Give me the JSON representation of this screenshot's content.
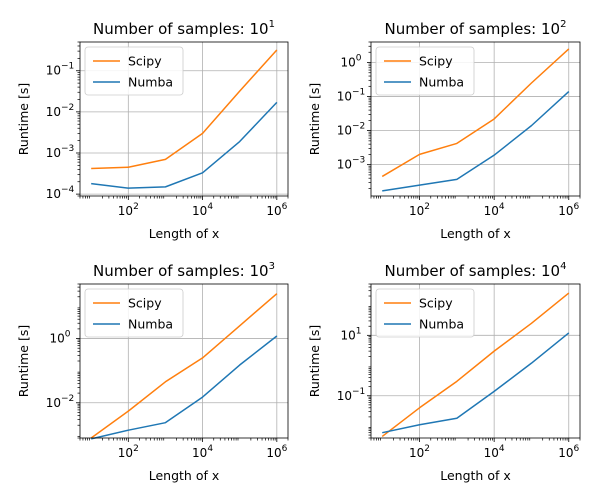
{
  "chart_data": [
    {
      "type": "line",
      "title_base": "Number of samples: 10",
      "title_exp": "1",
      "xlabel": "Length of x",
      "ylabel": "Runtime [s]",
      "xscale": "log",
      "yscale": "log",
      "xlim": [
        5,
        2000000
      ],
      "ylim": [
        9e-05,
        0.5
      ],
      "xticks": [
        100,
        10000,
        1000000
      ],
      "yticks": [
        0.0001,
        0.001,
        0.01,
        0.1
      ],
      "grid": true,
      "legend": "top-left",
      "x": [
        10,
        100,
        1000,
        10000,
        100000,
        1000000
      ],
      "series": [
        {
          "name": "Scipy",
          "color": "#ff7f0e",
          "values": [
            0.00042,
            0.00045,
            0.0007,
            0.003,
            0.032,
            0.32
          ]
        },
        {
          "name": "Numba",
          "color": "#1f77b4",
          "values": [
            0.00018,
            0.00014,
            0.00015,
            0.00033,
            0.0019,
            0.017
          ]
        }
      ]
    },
    {
      "type": "line",
      "title_base": "Number of samples: 10",
      "title_exp": "2",
      "xlabel": "Length of x",
      "ylabel": "Runtime [s]",
      "xscale": "log",
      "yscale": "log",
      "xlim": [
        5,
        2000000
      ],
      "ylim": [
        0.00012,
        4
      ],
      "xticks": [
        100,
        10000,
        1000000
      ],
      "yticks": [
        0.001,
        0.01,
        0.1,
        1
      ],
      "grid": true,
      "legend": "top-left",
      "x": [
        10,
        100,
        1000,
        10000,
        100000,
        1000000
      ],
      "series": [
        {
          "name": "Scipy",
          "color": "#ff7f0e",
          "values": [
            0.00045,
            0.002,
            0.0042,
            0.022,
            0.25,
            2.5
          ]
        },
        {
          "name": "Numba",
          "color": "#1f77b4",
          "values": [
            0.00017,
            0.00025,
            0.00037,
            0.0019,
            0.014,
            0.14
          ]
        }
      ]
    },
    {
      "type": "line",
      "title_base": "Number of samples: 10",
      "title_exp": "3",
      "xlabel": "Length of x",
      "ylabel": "Runtime [s]",
      "xscale": "log",
      "yscale": "log",
      "xlim": [
        5,
        2000000
      ],
      "ylim": [
        0.0008,
        50
      ],
      "xticks": [
        100,
        10000,
        1000000
      ],
      "yticks": [
        0.01,
        1
      ],
      "grid": true,
      "legend": "top-left",
      "x": [
        10,
        100,
        1000,
        10000,
        100000,
        1000000
      ],
      "series": [
        {
          "name": "Scipy",
          "color": "#ff7f0e",
          "values": [
            0.0008,
            0.0055,
            0.045,
            0.25,
            2.5,
            25
          ]
        },
        {
          "name": "Numba",
          "color": "#1f77b4",
          "values": [
            0.00075,
            0.0014,
            0.0024,
            0.015,
            0.15,
            1.2
          ]
        }
      ]
    },
    {
      "type": "line",
      "title_base": "Number of samples: 10",
      "title_exp": "4",
      "xlabel": "Length of x",
      "ylabel": "Runtime [s]",
      "xscale": "log",
      "yscale": "log",
      "xlim": [
        5,
        2000000
      ],
      "ylim": [
        0.004,
        500
      ],
      "xticks": [
        100,
        10000,
        1000000
      ],
      "yticks": [
        0.1,
        10
      ],
      "grid": true,
      "legend": "top-left",
      "x": [
        10,
        100,
        1000,
        10000,
        100000,
        1000000
      ],
      "series": [
        {
          "name": "Scipy",
          "color": "#ff7f0e",
          "values": [
            0.0045,
            0.04,
            0.3,
            3,
            25,
            250
          ]
        },
        {
          "name": "Numba",
          "color": "#1f77b4",
          "values": [
            0.006,
            0.011,
            0.018,
            0.14,
            1.2,
            12
          ]
        }
      ]
    }
  ]
}
